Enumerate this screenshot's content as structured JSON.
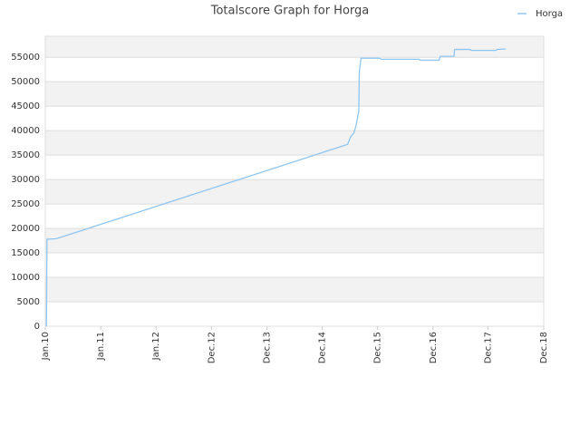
{
  "chart_data": {
    "type": "line",
    "title": "Totalscore Graph for Horga",
    "xlim": [
      0,
      9
    ],
    "xticks": [
      {
        "value": 0,
        "label": "Jan.10"
      },
      {
        "value": 1,
        "label": "Jan.11"
      },
      {
        "value": 2,
        "label": "Jan.12"
      },
      {
        "value": 3,
        "label": "Dec.12"
      },
      {
        "value": 4,
        "label": "Dec.13"
      },
      {
        "value": 5,
        "label": "Dec.14"
      },
      {
        "value": 6,
        "label": "Dec.15"
      },
      {
        "value": 7,
        "label": "Dec.16"
      },
      {
        "value": 7.99,
        "label": "Dec.17"
      },
      {
        "value": 9,
        "label": "Dec.18"
      }
    ],
    "ylim": [
      0,
      59300
    ],
    "yticks": [
      0,
      5000,
      10000,
      15000,
      20000,
      25000,
      30000,
      35000,
      40000,
      45000,
      50000,
      55000
    ],
    "grid": true,
    "legend": "top-right",
    "series": [
      {
        "name": "Horga",
        "color": "#8ec5f2",
        "x": [
          0.02,
          0.03,
          0.2,
          5.46,
          5.51,
          5.57,
          5.61,
          5.66,
          5.67,
          5.7,
          6.03,
          6.07,
          6.75,
          6.77,
          7.11,
          7.13,
          7.38,
          7.39,
          7.67,
          7.69,
          8.13,
          8.16,
          8.31
        ],
        "values": [
          0,
          17800,
          17900,
          37200,
          38700,
          39500,
          41000,
          44000,
          52000,
          54800,
          54800,
          54600,
          54600,
          54400,
          54400,
          55200,
          55200,
          56600,
          56600,
          56400,
          56400,
          56600,
          56700
        ]
      }
    ]
  }
}
